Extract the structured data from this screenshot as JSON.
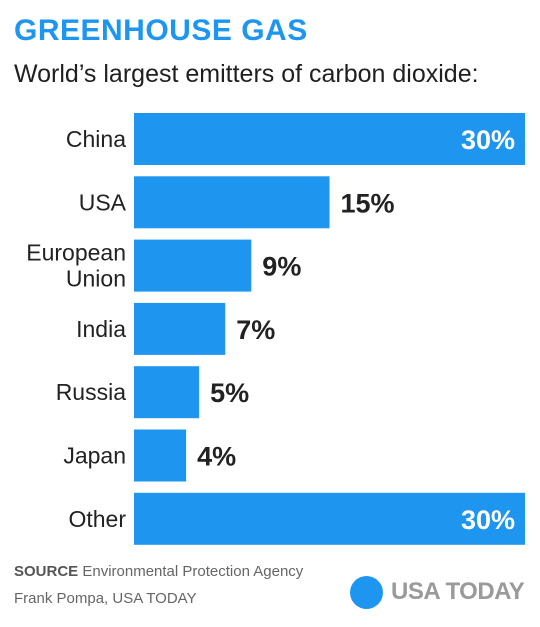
{
  "header": {
    "title": "GREENHOUSE GAS",
    "subtitle": "World’s largest emitters of carbon dioxide:"
  },
  "chart_data": {
    "type": "bar",
    "orientation": "horizontal",
    "categories": [
      [
        "China"
      ],
      [
        "USA"
      ],
      [
        "European",
        "Union"
      ],
      [
        "India"
      ],
      [
        "Russia"
      ],
      [
        "Japan"
      ],
      [
        "Other"
      ]
    ],
    "values": [
      30,
      15,
      9,
      7,
      5,
      4,
      30
    ],
    "value_labels": [
      "30%",
      "15%",
      "9%",
      "7%",
      "5%",
      "4%",
      "30%"
    ],
    "unit": "%",
    "xlim": [
      0,
      30
    ],
    "grid": false,
    "legend": "none",
    "bar_color": "#1e96f0"
  },
  "footer": {
    "source_label": "SOURCE",
    "source_text": " Environmental Protection Agency",
    "credit": "Frank Pompa, USA TODAY",
    "brand": "USA TODAY"
  },
  "colors": {
    "accent": "#1e96f0",
    "label_text": "#222222",
    "inside_label": "#ffffff"
  }
}
